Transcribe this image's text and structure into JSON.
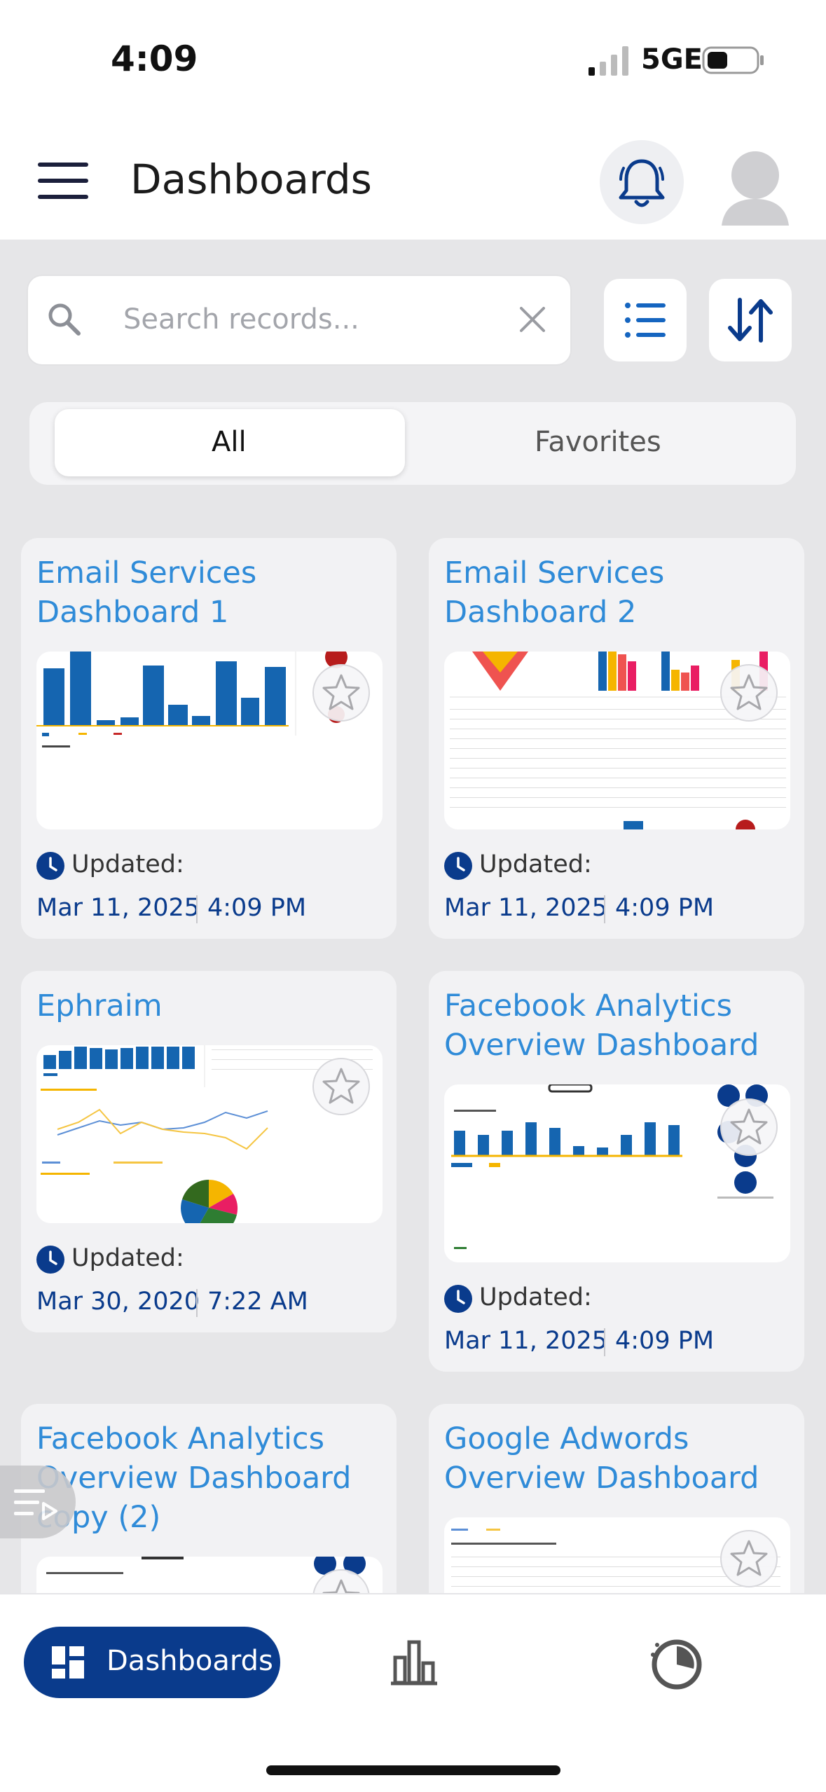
{
  "status_bar": {
    "time": "4:09",
    "network": "5GE"
  },
  "header": {
    "title": "Dashboards"
  },
  "search": {
    "placeholder": "Search records..."
  },
  "segments": {
    "all": "All",
    "favorites": "Favorites"
  },
  "cards": [
    {
      "title_line1": "Email Services",
      "title_line2": "Dashboard 1",
      "updated_label": "Updated:",
      "date": "Mar 11, 2025",
      "time": "4:09 PM"
    },
    {
      "title_line1": "Email Services",
      "title_line2": "Dashboard 2",
      "updated_label": "Updated:",
      "date": "Mar 11, 2025",
      "time": "4:09 PM"
    },
    {
      "title_line1": "Ephraim",
      "updated_label": "Updated:",
      "date": "Mar 30, 2020",
      "time": "7:22 AM"
    },
    {
      "title_line1": "Facebook Analytics",
      "title_line2": "Overview Dashboard",
      "updated_label": "Updated:",
      "date": "Mar 11, 2025",
      "time": "4:09 PM"
    },
    {
      "title_line1": "Facebook Analytics",
      "title_line2": "Overview Dashboard",
      "title_line3": "copy (2)"
    },
    {
      "title_line1": "Google Adwords",
      "title_line2": "Overview Dashboard"
    }
  ],
  "bottom_nav": {
    "dashboards_label": "Dashboards"
  },
  "colors": {
    "accent": "#0a3b8c",
    "title_blue": "#2f8bd8",
    "chart_blue": "#1565b0"
  }
}
